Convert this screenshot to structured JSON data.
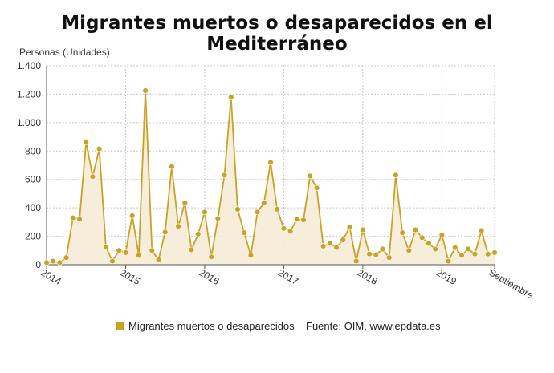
{
  "title": "Migrantes muertos o desaparecidos en el Mediterráneo",
  "colors": {
    "series": "#c9a227",
    "fill": "#f5ecd6",
    "grid": "#c8c8c8",
    "axis": "#555555"
  },
  "chart_data": {
    "type": "area",
    "title": "Migrantes muertos o desaparecidos en el Mediterráneo",
    "ylabel": "Personas (Unidades)",
    "xlabel": "",
    "ylim": [
      0,
      1400
    ],
    "yticks": [
      0,
      200,
      400,
      600,
      800,
      1000,
      1200,
      1400
    ],
    "ytick_labels": [
      "0",
      "200",
      "400",
      "600",
      "800",
      "1.000",
      "1.200",
      "1.400"
    ],
    "xticks": [
      {
        "label": "2014",
        "index": 0
      },
      {
        "label": "2015",
        "index": 12
      },
      {
        "label": "2016",
        "index": 24
      },
      {
        "label": "2017",
        "index": 36
      },
      {
        "label": "2018",
        "index": 48
      },
      {
        "label": "2019",
        "index": 60
      },
      {
        "label": "Septiembre",
        "index": 68
      }
    ],
    "grid": true,
    "legend_position": "bottom",
    "series": [
      {
        "name": "Migrantes muertos o desaparecidos",
        "start": "2014-01",
        "end": "2019-09",
        "values": [
          15,
          25,
          15,
          50,
          330,
          320,
          865,
          620,
          815,
          125,
          25,
          100,
          85,
          345,
          65,
          1225,
          100,
          35,
          230,
          690,
          270,
          435,
          105,
          215,
          370,
          55,
          325,
          630,
          1180,
          390,
          225,
          65,
          370,
          435,
          720,
          390,
          255,
          235,
          320,
          315,
          625,
          540,
          130,
          150,
          120,
          175,
          265,
          25,
          245,
          75,
          70,
          110,
          50,
          630,
          225,
          100,
          245,
          190,
          150,
          110,
          210,
          25,
          120,
          65,
          110,
          75,
          240,
          75,
          85
        ]
      }
    ]
  },
  "legend": {
    "label": "Migrantes muertos o desaparecidos"
  },
  "source": "Fuente: OIM, www.epdata.es"
}
